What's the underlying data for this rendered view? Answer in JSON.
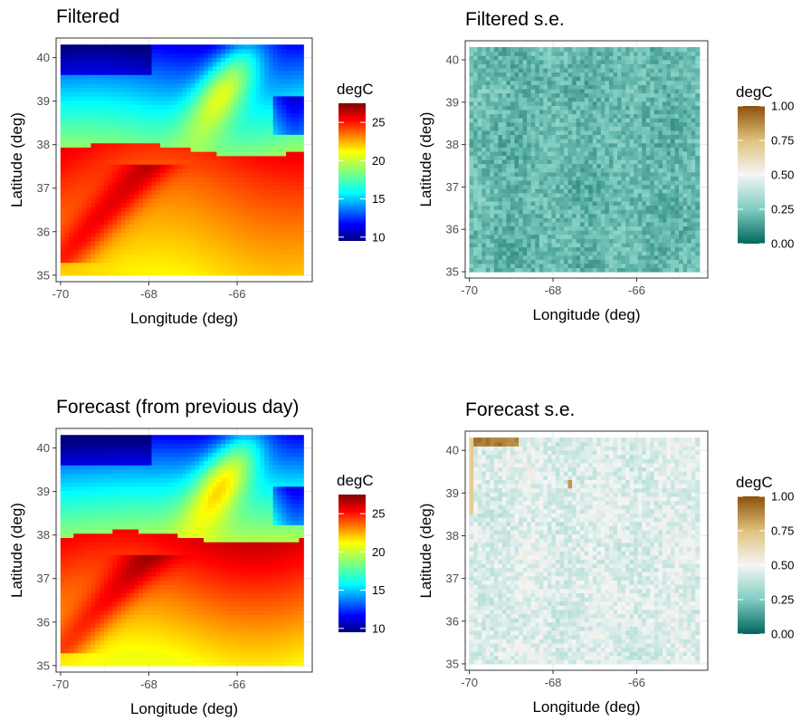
{
  "chart_data": [
    {
      "type": "heatmap",
      "title": "Filtered",
      "xlabel": "Longitude (deg)",
      "ylabel": "Latitude (deg)",
      "x_ticks": [
        "-70",
        "-68",
        "-66"
      ],
      "y_ticks": [
        "35",
        "36",
        "37",
        "38",
        "39",
        "40"
      ],
      "xlim": [
        -70.1,
        -64.3
      ],
      "ylim": [
        34.85,
        40.45
      ],
      "legend": {
        "title": "degC",
        "ticks": [
          "10",
          "15",
          "20",
          "25"
        ],
        "range": [
          9.5,
          27.5
        ],
        "placement": "right"
      },
      "colorscale": "jet",
      "grid": true,
      "description_values": {
        "north_cold_min": 10,
        "gulf_stream_max": 25,
        "south_typical": 22
      }
    },
    {
      "type": "heatmap",
      "title": "Filtered s.e.",
      "xlabel": "Longitude (deg)",
      "ylabel": "Latitude (deg)",
      "x_ticks": [
        "-70",
        "-68",
        "-66"
      ],
      "y_ticks": [
        "35",
        "36",
        "37",
        "38",
        "39",
        "40"
      ],
      "xlim": [
        -70.1,
        -64.3
      ],
      "ylim": [
        34.85,
        40.45
      ],
      "legend": {
        "title": "degC",
        "ticks": [
          "0.00",
          "0.25",
          "0.50",
          "0.75",
          "1.00"
        ],
        "range": [
          0,
          1
        ],
        "placement": "right"
      },
      "colorscale": "BrBG",
      "grid": true,
      "typical_value": 0.2
    },
    {
      "type": "heatmap",
      "title": "Forecast (from previous day)",
      "xlabel": "Longitude (deg)",
      "ylabel": "Latitude (deg)",
      "x_ticks": [
        "-70",
        "-68",
        "-66"
      ],
      "y_ticks": [
        "35",
        "36",
        "37",
        "38",
        "39",
        "40"
      ],
      "xlim": [
        -70.1,
        -64.3
      ],
      "ylim": [
        34.85,
        40.45
      ],
      "legend": {
        "title": "degC",
        "ticks": [
          "10",
          "15",
          "20",
          "25"
        ],
        "range": [
          9.5,
          27.5
        ],
        "placement": "right"
      },
      "colorscale": "jet",
      "grid": true
    },
    {
      "type": "heatmap",
      "title": "Forecast s.e.",
      "xlabel": "Longitude (deg)",
      "ylabel": "Latitude (deg)",
      "x_ticks": [
        "-70",
        "-68",
        "-66"
      ],
      "y_ticks": [
        "35",
        "36",
        "37",
        "38",
        "39",
        "40"
      ],
      "xlim": [
        -70.1,
        -64.3
      ],
      "ylim": [
        34.85,
        40.45
      ],
      "legend": {
        "title": "degC",
        "ticks": [
          "0.00",
          "0.25",
          "0.50",
          "0.75",
          "1.00"
        ],
        "range": [
          0,
          1
        ],
        "placement": "right"
      },
      "colorscale": "BrBG",
      "grid": true,
      "typical_value": 0.45
    }
  ],
  "data_extent": {
    "lon": [
      -70,
      -64.5
    ],
    "lat": [
      35,
      40.3
    ]
  }
}
